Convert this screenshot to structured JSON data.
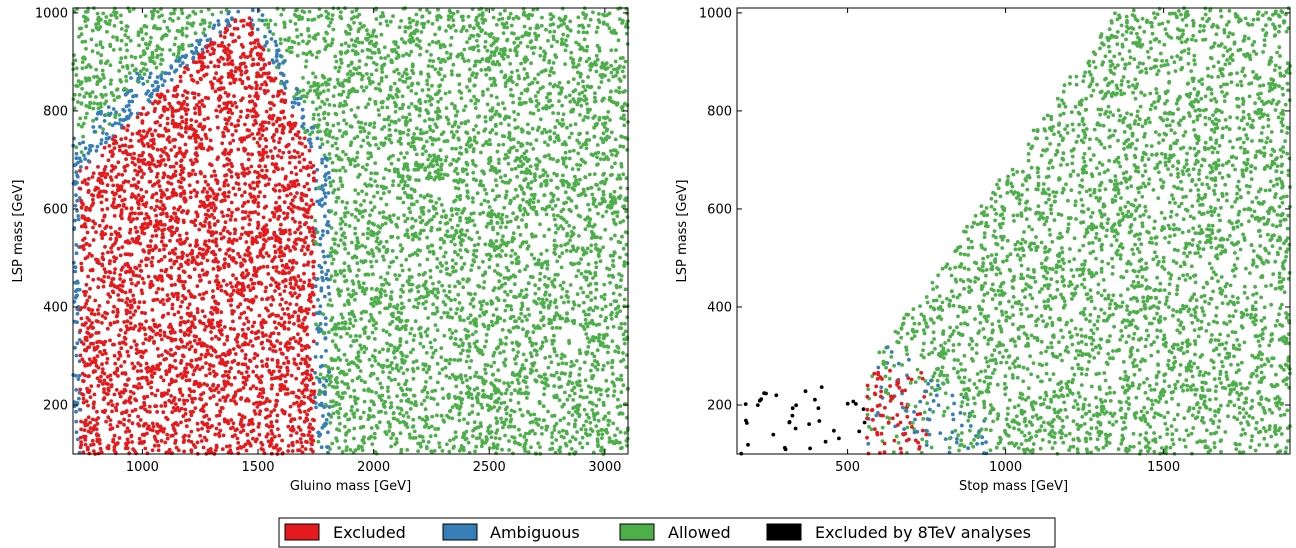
{
  "colors": {
    "excluded": "#e41a1c",
    "ambiguous": "#377eb8",
    "allowed": "#4daf4a",
    "excluded_8tev": "#000000"
  },
  "legend": {
    "placement": "bottom-center",
    "items": [
      {
        "key": "excluded",
        "label": "Excluded"
      },
      {
        "key": "ambiguous",
        "label": "Ambiguous"
      },
      {
        "key": "allowed",
        "label": "Allowed"
      },
      {
        "key": "excluded_8tev",
        "label": "Excluded by 8TeV analyses"
      }
    ]
  },
  "chart_data": [
    {
      "type": "scatter",
      "xlabel": "Gluino mass [GeV]",
      "ylabel": "LSP mass [GeV]",
      "xlim": [
        700,
        3100
      ],
      "ylim": [
        100,
        1010
      ],
      "xticks": [
        1000,
        1500,
        2000,
        2500,
        3000
      ],
      "yticks": [
        200,
        400,
        600,
        800,
        1000
      ],
      "series": [
        {
          "name": "Excluded",
          "color_key": "excluded",
          "approx_points": 2600,
          "region": "gluino mass ~700-1750 GeV below the ambiguous band; boundary ~1750 GeV at low LSP mass, curving to ~1450 GeV near LSP 1000 GeV and down to ~700 GeV near LSP 750 GeV"
        },
        {
          "name": "Ambiguous",
          "color_key": "ambiguous",
          "approx_points": 450,
          "region": "narrow band along the excluded-region boundary, ~1700-1800 GeV at low LSP mass, wider near LSP 700-1000 GeV"
        },
        {
          "name": "Allowed",
          "color_key": "allowed",
          "approx_points": 7000,
          "region": "gluino mass > ~1800 GeV for all LSP masses, plus upper-left corner above the ambiguous band"
        }
      ]
    },
    {
      "type": "scatter",
      "xlabel": "Stop mass [GeV]",
      "ylabel": "LSP mass [GeV]",
      "xlim": [
        150,
        1900
      ],
      "ylim": [
        100,
        1010
      ],
      "xticks": [
        500,
        1000,
        1500
      ],
      "yticks": [
        200,
        400,
        600,
        800,
        1000
      ],
      "series": [
        {
          "name": "Excluded by 8TeV analyses",
          "color_key": "excluded_8tev",
          "approx_points": 90,
          "region": "stop mass ~150-560 GeV, LSP mass < ~240 GeV"
        },
        {
          "name": "Excluded",
          "color_key": "excluded",
          "approx_points": 70,
          "region": "stop mass ~520-750 GeV, LSP mass < ~280 GeV"
        },
        {
          "name": "Ambiguous",
          "color_key": "ambiguous",
          "approx_points": 260,
          "region": "stop mass ~350-950 GeV, LSP mass < ~400 GeV, around the excluded points"
        },
        {
          "name": "Allowed",
          "color_key": "allowed",
          "approx_points": 4800,
          "region": "LSP mass below roughly stop mass - 230 GeV (diagonal edge), stop mass up to 1900 GeV"
        }
      ]
    }
  ]
}
